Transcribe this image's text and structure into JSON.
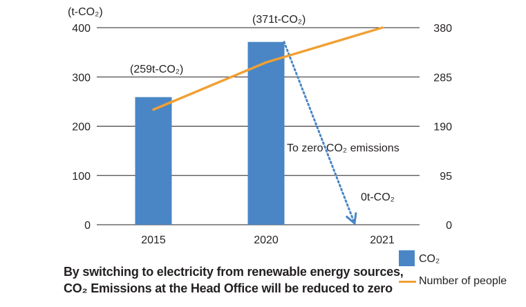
{
  "chart_data": {
    "type": "bar+line",
    "categories": [
      "2015",
      "2020",
      "2021"
    ],
    "left_axis": {
      "unit_label": "(t-CO₂)",
      "ylim": [
        0,
        400
      ],
      "ticks": [
        "0",
        "100",
        "200",
        "300",
        "400"
      ]
    },
    "right_axis": {
      "ylim": [
        0,
        380
      ],
      "ticks": [
        "0",
        "95",
        "190",
        "285",
        "380"
      ]
    },
    "series": [
      {
        "name": "CO₂",
        "type": "bar",
        "axis": "left",
        "values": [
          259,
          371,
          null
        ],
        "color": "#4a86c5"
      },
      {
        "name": "Number of people",
        "type": "line",
        "axis": "right",
        "values": [
          222,
          313,
          380
        ],
        "color": "#f0a033"
      }
    ],
    "bar_labels": [
      "(259t-CO₂)",
      "(371t-CO₂)"
    ],
    "projection": {
      "from": "2020",
      "to": "2021",
      "from_value": 371,
      "to_value": 0,
      "color": "#4a86c5"
    },
    "annotations": {
      "arrow_text": "To zero CO₂ emissions",
      "zero_label": "0t-CO₂"
    },
    "grid": true
  },
  "caption": {
    "line1": "By switching to electricity from renewable energy sources,",
    "line2": "CO₂ Emissions at the Head Office will be reduced to zero"
  },
  "legend": {
    "bar_label": "CO₂",
    "line_label": "Number of people"
  }
}
